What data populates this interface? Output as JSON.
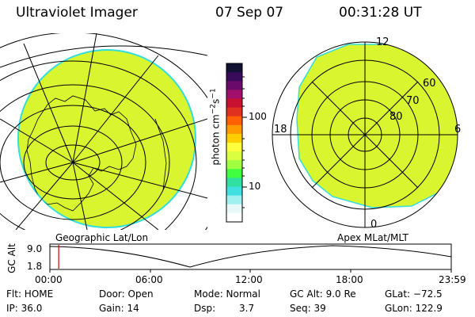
{
  "header": {
    "instrument": "Ultraviolet Imager",
    "date": "07 Sep 07",
    "time": "00:31:28 UT"
  },
  "colorbar": {
    "unit_label": "photon cm",
    "unit_exp1": "−2",
    "unit_mid": "s",
    "unit_exp2": "−1",
    "ticks": [
      "100",
      "10"
    ],
    "colors_top_to_bottom": [
      "#111133",
      "#3a0a5a",
      "#6a0a6a",
      "#a0106a",
      "#c81030",
      "#e03020",
      "#ff6000",
      "#ff9a00",
      "#ffcf00",
      "#ffff40",
      "#d8ff40",
      "#a0ff40",
      "#40ff40",
      "#30e0a0",
      "#40e0e0",
      "#a0f0f0",
      "#e8f8f8",
      "#ffffff"
    ]
  },
  "left_panel": {
    "label": "Geographic Lat/Lon",
    "fill_color": "#d9f530",
    "edge_color": "#33dddd"
  },
  "right_panel": {
    "label": "Apex  MLat/MLT",
    "mlt_labels": {
      "top": "12",
      "left": "18",
      "right": "6",
      "bottom": "0"
    },
    "lat_labels": [
      "60",
      "70",
      "80"
    ],
    "fill_color": "#d9f530"
  },
  "timeline": {
    "axis_label": "GC Alt",
    "y_ticks": [
      "9.0",
      "1.8"
    ],
    "x_ticks": [
      "00:00",
      "06:00",
      "12:00",
      "18:00",
      "23:59"
    ],
    "current_fraction": 0.022,
    "marker_color": "#cc0000"
  },
  "status": {
    "flt": "Flt: HOME",
    "ip": "IP: 36.0",
    "door": "Door: Open",
    "gain": "Gain: 14",
    "mode": "Mode: Normal",
    "dsp_label": "Dsp:",
    "dsp_value": "3.7",
    "gcalt": "GC Alt: 9.0 Re",
    "seq": "Seq: 39",
    "glat": "GLat: −72.5",
    "glon": "GLon: 122.9"
  }
}
